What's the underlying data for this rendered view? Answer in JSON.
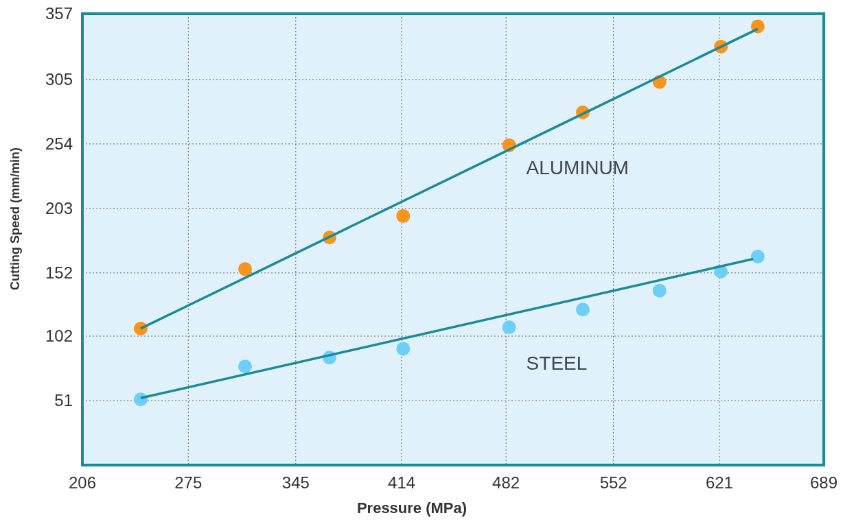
{
  "chart_data": {
    "type": "scatter",
    "xlabel": "Pressure (MPa)",
    "ylabel": "Cutting Speed (mm/min)",
    "xlim": [
      206,
      689
    ],
    "xticks": [
      206,
      275,
      345,
      414,
      482,
      552,
      621,
      689
    ],
    "ylim": [
      0,
      357
    ],
    "yticks": [
      51,
      102,
      152,
      203,
      254,
      305,
      357
    ],
    "grid": true,
    "legend": false,
    "marker": "circle",
    "series": [
      {
        "name": "ALUMINUM",
        "color": "#f7941d",
        "x": [
          244,
          312,
          367,
          415,
          484,
          532,
          582,
          622,
          646
        ],
        "values": [
          108,
          155,
          180,
          197,
          253,
          279,
          303,
          331,
          347
        ]
      },
      {
        "name": "STEEL",
        "color": "#6dcff6",
        "x": [
          244,
          312,
          367,
          415,
          484,
          532,
          582,
          622,
          646
        ],
        "values": [
          52,
          78,
          85,
          92,
          109,
          123,
          138,
          153,
          165
        ]
      },
      {
        "type": "line",
        "color": "#1a8a96",
        "line_style": "solid",
        "marker": "none",
        "x": [
          244,
          646
        ],
        "values": [
          108,
          345
        ]
      },
      {
        "type": "line",
        "color": "#1a8a96",
        "line_style": "solid",
        "marker": "none",
        "x": [
          244,
          643
        ],
        "values": [
          53,
          163
        ]
      }
    ]
  }
}
